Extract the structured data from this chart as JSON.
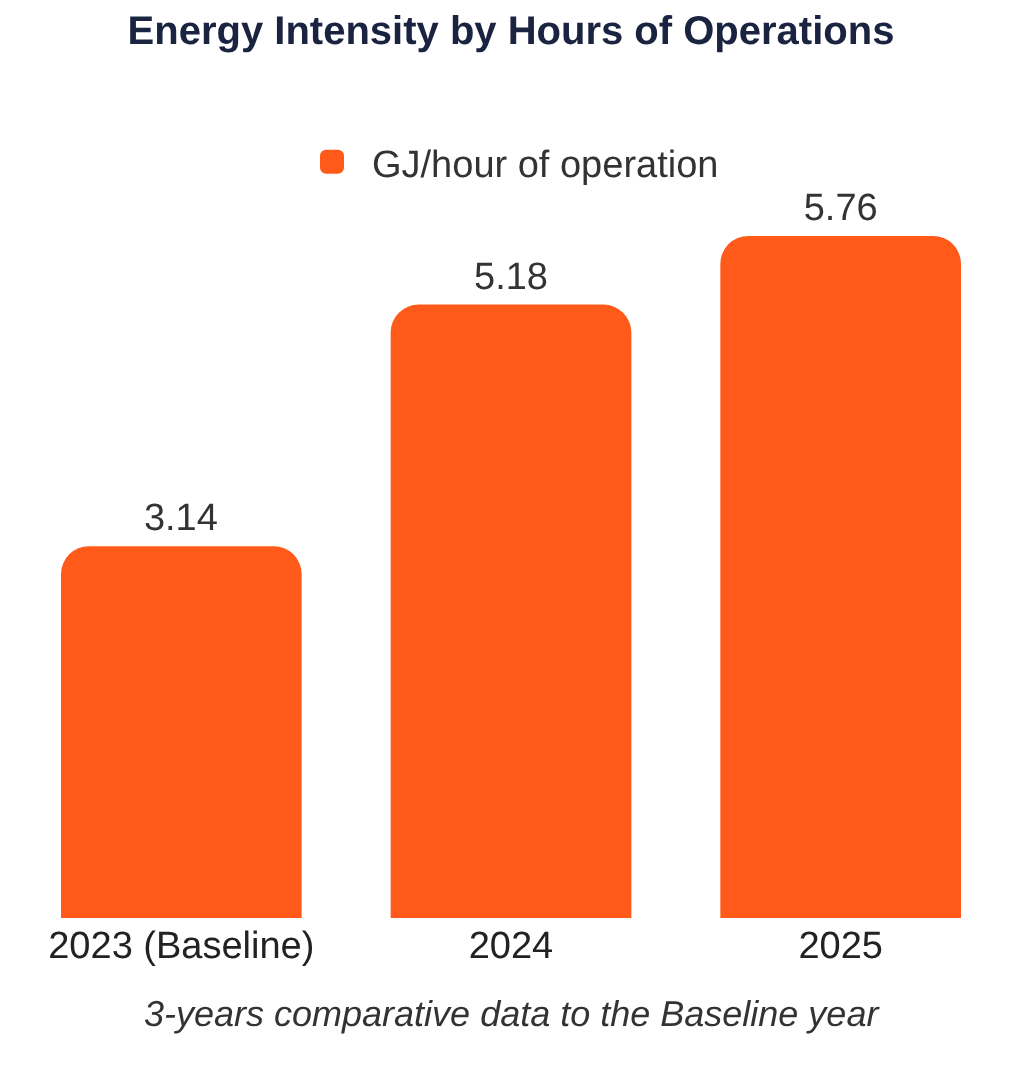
{
  "chart_data": {
    "type": "bar",
    "title": "Energy Intensity by Hours of Operations",
    "categories": [
      "2023 (Baseline)",
      "2024",
      "2025"
    ],
    "series": [
      {
        "name": "GJ/hour of operation",
        "color": "#ff5a1a",
        "values": [
          3.14,
          5.18,
          5.76
        ]
      }
    ],
    "data_labels": true,
    "legend": "top",
    "annotations": [
      "3-years comparative data to the Baseline year"
    ]
  }
}
